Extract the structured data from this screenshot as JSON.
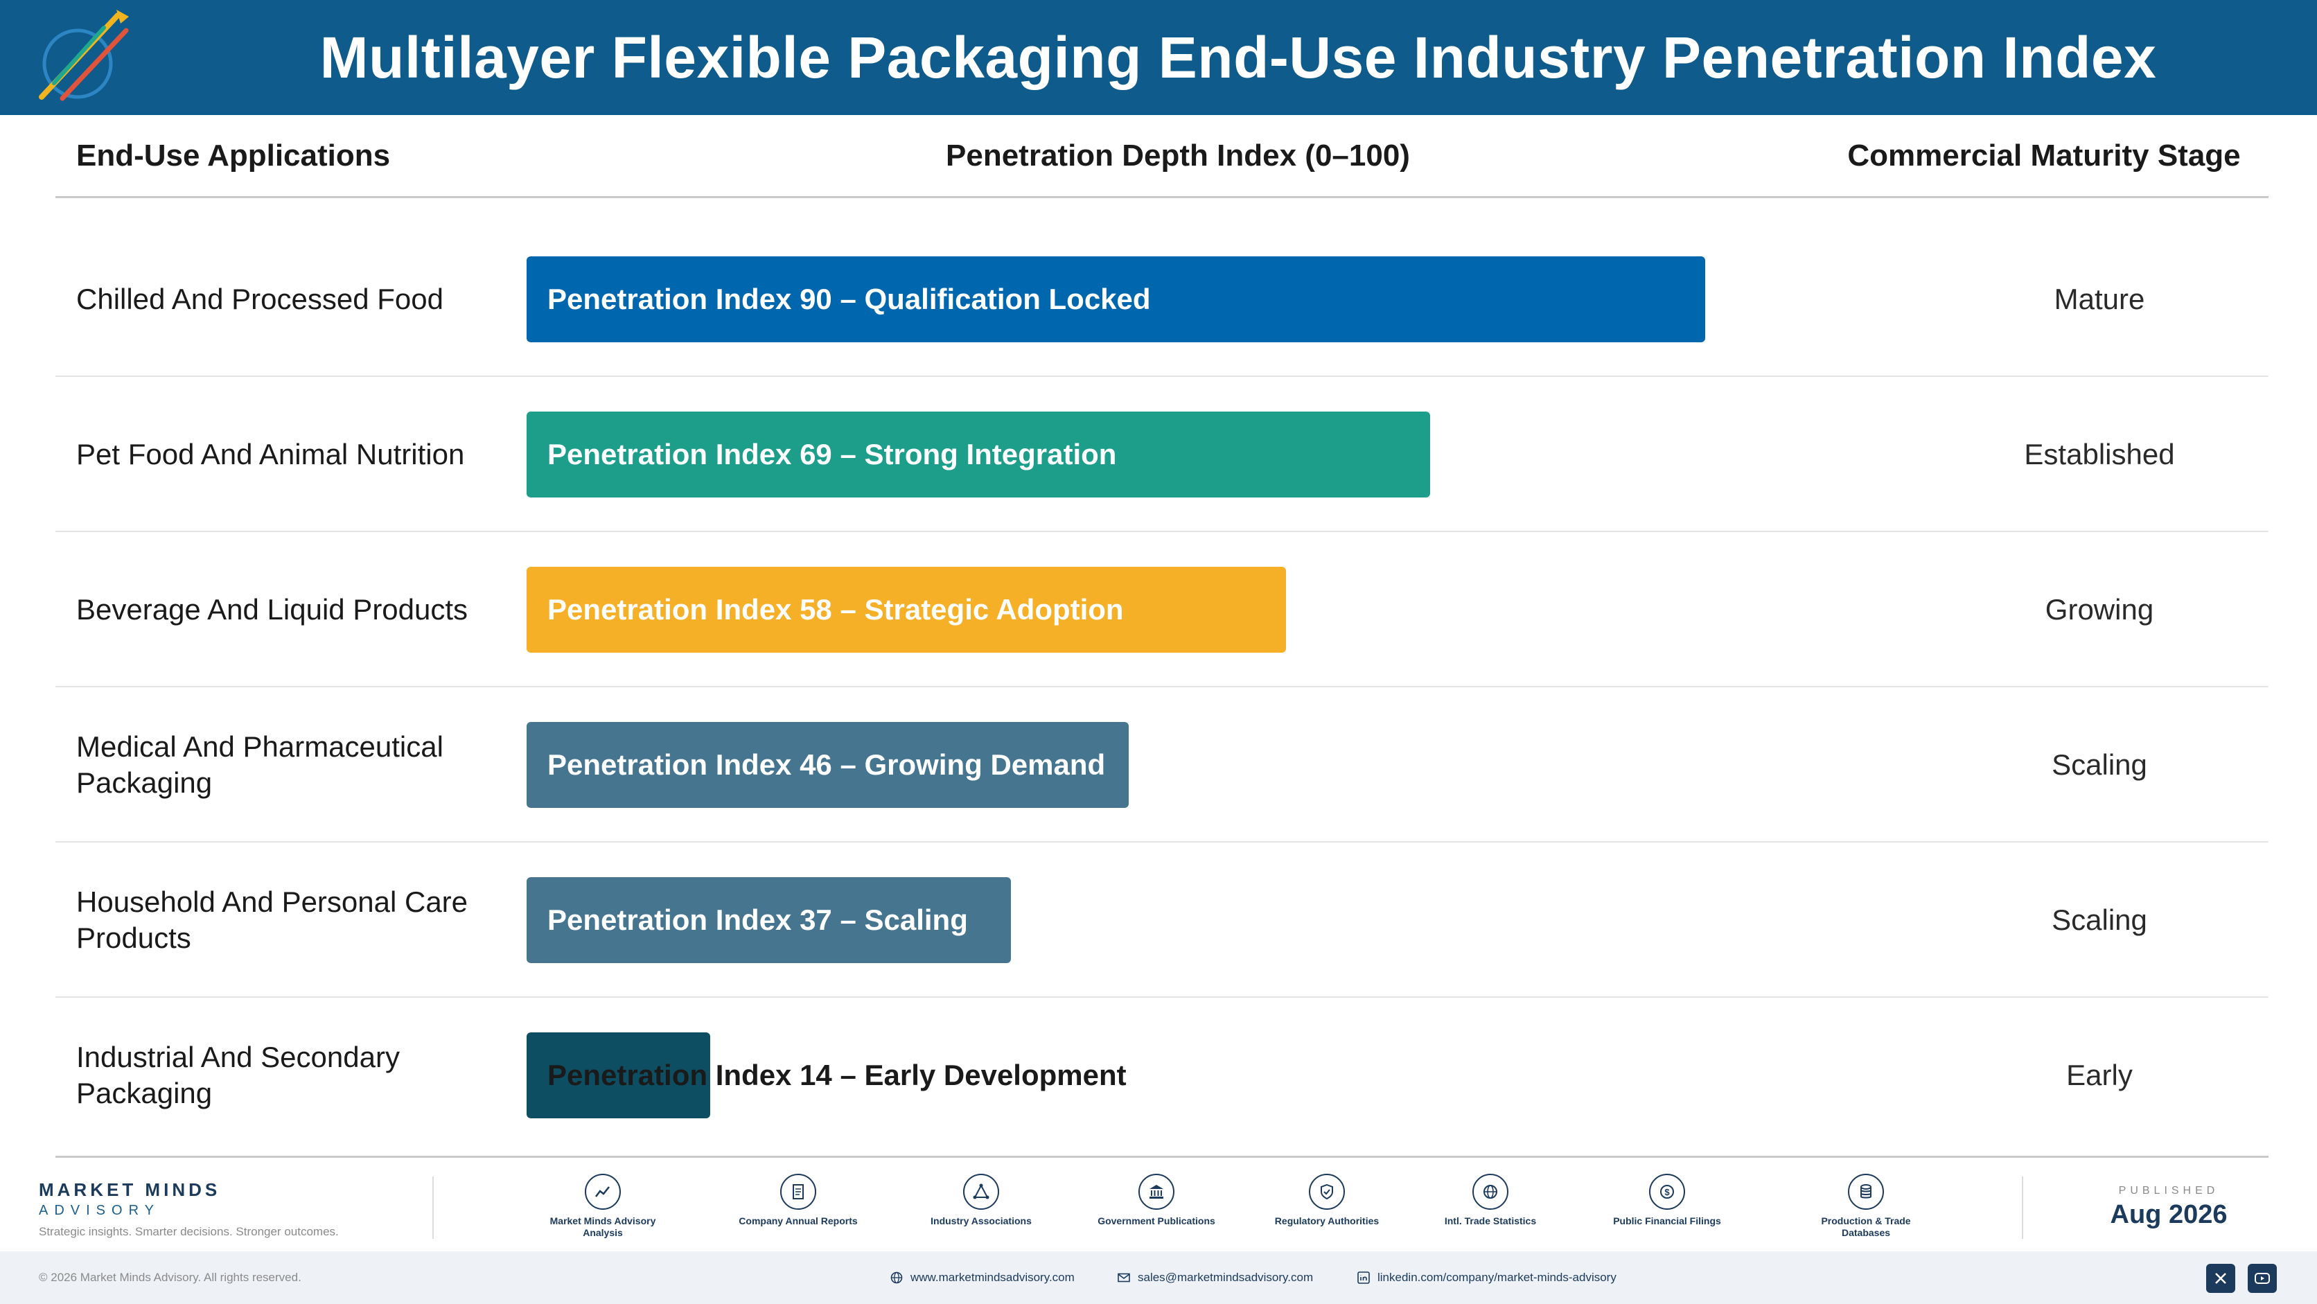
{
  "header": {
    "title": "Multilayer Flexible Packaging End-Use Industry Penetration Index"
  },
  "columns": {
    "applications": "End-Use Applications",
    "index": "Penetration Depth Index (0–100)",
    "stage": "Commercial Maturity Stage"
  },
  "chart_data": {
    "type": "bar",
    "orientation": "horizontal",
    "xlim": [
      0,
      100
    ],
    "categories": [
      "Chilled And Processed Food",
      "Pet Food And Animal Nutrition",
      "Beverage And Liquid Products",
      "Medical And Pharmaceutical Packaging",
      "Household And Personal Care Products",
      "Industrial And Secondary Packaging"
    ],
    "values": [
      90,
      69,
      58,
      46,
      37,
      14
    ],
    "bar_labels": [
      "Penetration Index 90 – Qualification Locked",
      "Penetration Index 69 – Strong Integration",
      "Penetration Index 58 – Strategic Adoption",
      "Penetration Index 46 – Growing Demand",
      "Penetration Index 37 – Scaling",
      "Penetration Index 14 – Early Development"
    ],
    "stages": [
      "Mature",
      "Established",
      "Growing",
      "Scaling",
      "Scaling",
      "Early"
    ],
    "colors": [
      "#0066ad",
      "#1c9e8b",
      "#f5b027",
      "#467590",
      "#467590",
      "#0e4e63"
    ]
  },
  "footer": {
    "brand_name": "MARKET MINDS",
    "brand_sub": "ADVISORY",
    "tagline": "Strategic insights. Smarter decisions. Stronger outcomes.",
    "sources": [
      {
        "label": "Market Minds Advisory Analysis",
        "icon": "chart-line-icon"
      },
      {
        "label": "Company Annual Reports",
        "icon": "document-icon"
      },
      {
        "label": "Industry Associations",
        "icon": "network-icon"
      },
      {
        "label": "Government Publications",
        "icon": "building-icon"
      },
      {
        "label": "Regulatory Authorities",
        "icon": "shield-icon"
      },
      {
        "label": "Intl. Trade Statistics",
        "icon": "globe-icon"
      },
      {
        "label": "Public Financial Filings",
        "icon": "dollar-icon"
      },
      {
        "label": "Production & Trade Databases",
        "icon": "database-icon"
      }
    ],
    "published_label": "PUBLISHED",
    "published_date": "Aug 2026"
  },
  "bottom_bar": {
    "copyright": "© 2026 Market Minds Advisory. All rights reserved.",
    "website": "www.marketmindsadvisory.com",
    "email": "sales@marketmindsadvisory.com",
    "linkedin": "linkedin.com/company/market-minds-advisory"
  }
}
